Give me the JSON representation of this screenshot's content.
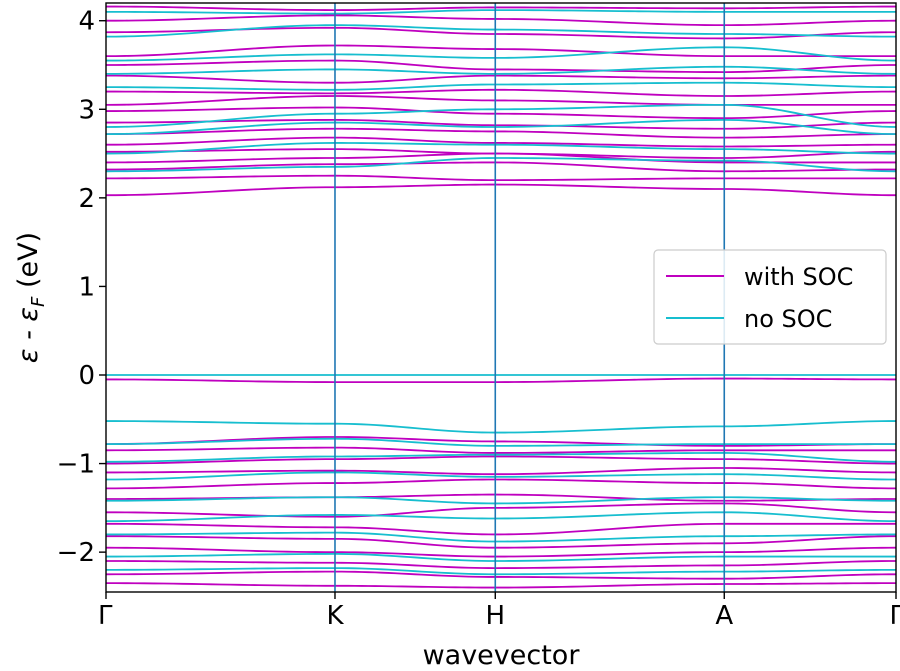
{
  "chart_data": {
    "type": "line",
    "xlabel": "wavevector",
    "ylabel": "ε - ε_F (eV)",
    "ylabel_parts": {
      "main": "ε - ε",
      "sub": "F",
      "unit": " (eV)"
    },
    "ylim": [
      -2.45,
      4.2
    ],
    "yticks": [
      -2,
      -1,
      0,
      1,
      2,
      3,
      4
    ],
    "ytick_labels": [
      "−2",
      "−1",
      "0",
      "1",
      "2",
      "3",
      "4"
    ],
    "kpoints": [
      {
        "label": "Γ",
        "pos": 0.0
      },
      {
        "label": "K",
        "pos": 1.0
      },
      {
        "label": "H",
        "pos": 1.7
      },
      {
        "label": "A",
        "pos": 2.7
      },
      {
        "label": "Γ",
        "pos": 3.45
      }
    ],
    "legend": {
      "placement": "right",
      "entries": [
        {
          "name": "with SOC",
          "color": "#bf00bf"
        },
        {
          "name": "no SOC",
          "color": "#17becf"
        }
      ]
    },
    "kline_color": "#1f77b4",
    "series": [
      {
        "name": "with SOC",
        "color": "#bf00bf",
        "bands": [
          [
            4.16,
            4.12,
            4.15,
            4.14,
            4.16
          ],
          [
            4.0,
            4.06,
            4.02,
            3.95,
            4.0
          ],
          [
            3.87,
            3.92,
            3.85,
            3.8,
            3.87
          ],
          [
            3.6,
            3.72,
            3.68,
            3.6,
            3.6
          ],
          [
            3.5,
            3.55,
            3.45,
            3.42,
            3.5
          ],
          [
            3.38,
            3.3,
            3.38,
            3.35,
            3.38
          ],
          [
            3.2,
            3.18,
            3.22,
            3.15,
            3.2
          ],
          [
            3.05,
            3.15,
            3.1,
            3.05,
            3.05
          ],
          [
            2.98,
            3.02,
            2.95,
            2.9,
            2.98
          ],
          [
            2.85,
            2.88,
            2.82,
            2.78,
            2.85
          ],
          [
            2.72,
            2.78,
            2.75,
            2.68,
            2.72
          ],
          [
            2.6,
            2.68,
            2.62,
            2.58,
            2.6
          ],
          [
            2.52,
            2.55,
            2.5,
            2.45,
            2.52
          ],
          [
            2.4,
            2.45,
            2.5,
            2.4,
            2.4
          ],
          [
            2.32,
            2.38,
            2.4,
            2.3,
            2.32
          ],
          [
            2.22,
            2.25,
            2.2,
            2.22,
            2.22
          ],
          [
            2.03,
            2.12,
            2.15,
            2.1,
            2.03
          ],
          [
            -0.05,
            -0.08,
            -0.08,
            -0.04,
            -0.05
          ],
          [
            -0.78,
            -0.7,
            -0.75,
            -0.8,
            -0.78
          ],
          [
            -0.85,
            -0.82,
            -0.88,
            -0.85,
            -0.85
          ],
          [
            -1.0,
            -0.95,
            -0.92,
            -0.95,
            -1.0
          ],
          [
            -1.1,
            -1.08,
            -1.12,
            -1.05,
            -1.1
          ],
          [
            -1.28,
            -1.22,
            -1.18,
            -1.22,
            -1.28
          ],
          [
            -1.4,
            -1.38,
            -1.35,
            -1.42,
            -1.4
          ],
          [
            -1.55,
            -1.6,
            -1.5,
            -1.45,
            -1.55
          ],
          [
            -1.68,
            -1.72,
            -1.8,
            -1.68,
            -1.68
          ],
          [
            -1.82,
            -1.85,
            -1.95,
            -1.9,
            -1.82
          ],
          [
            -1.95,
            -2.0,
            -2.05,
            -2.0,
            -1.95
          ],
          [
            -2.1,
            -2.12,
            -2.18,
            -2.15,
            -2.1
          ],
          [
            -2.25,
            -2.22,
            -2.28,
            -2.3,
            -2.25
          ],
          [
            -2.35,
            -2.38,
            -2.4,
            -2.36,
            -2.35
          ]
        ]
      },
      {
        "name": "no SOC",
        "color": "#17becf",
        "bands": [
          [
            4.1,
            4.08,
            4.12,
            4.1,
            4.1
          ],
          [
            3.82,
            3.95,
            3.9,
            3.85,
            3.82
          ],
          [
            3.55,
            3.62,
            3.58,
            3.7,
            3.55
          ],
          [
            3.4,
            3.45,
            3.4,
            3.48,
            3.4
          ],
          [
            3.25,
            3.22,
            3.28,
            3.3,
            3.25
          ],
          [
            2.8,
            2.95,
            3.0,
            3.05,
            2.8
          ],
          [
            2.72,
            2.85,
            2.8,
            2.88,
            2.72
          ],
          [
            2.5,
            2.62,
            2.6,
            2.55,
            2.5
          ],
          [
            2.3,
            2.35,
            2.45,
            2.42,
            2.3
          ],
          [
            0.0,
            0.0,
            0.0,
            0.0,
            0.0
          ],
          [
            -0.52,
            -0.55,
            -0.65,
            -0.58,
            -0.52
          ],
          [
            -0.78,
            -0.72,
            -0.8,
            -0.78,
            -0.78
          ],
          [
            -0.98,
            -0.92,
            -0.9,
            -0.88,
            -0.98
          ],
          [
            -1.18,
            -1.1,
            -1.15,
            -1.12,
            -1.18
          ],
          [
            -1.42,
            -1.38,
            -1.45,
            -1.38,
            -1.42
          ],
          [
            -1.65,
            -1.58,
            -1.62,
            -1.55,
            -1.65
          ],
          [
            -1.8,
            -1.78,
            -1.88,
            -1.82,
            -1.8
          ],
          [
            -2.05,
            -2.02,
            -2.1,
            -2.05,
            -2.05
          ],
          [
            -2.2,
            -2.18,
            -2.25,
            -2.22,
            -2.2
          ]
        ]
      }
    ]
  }
}
